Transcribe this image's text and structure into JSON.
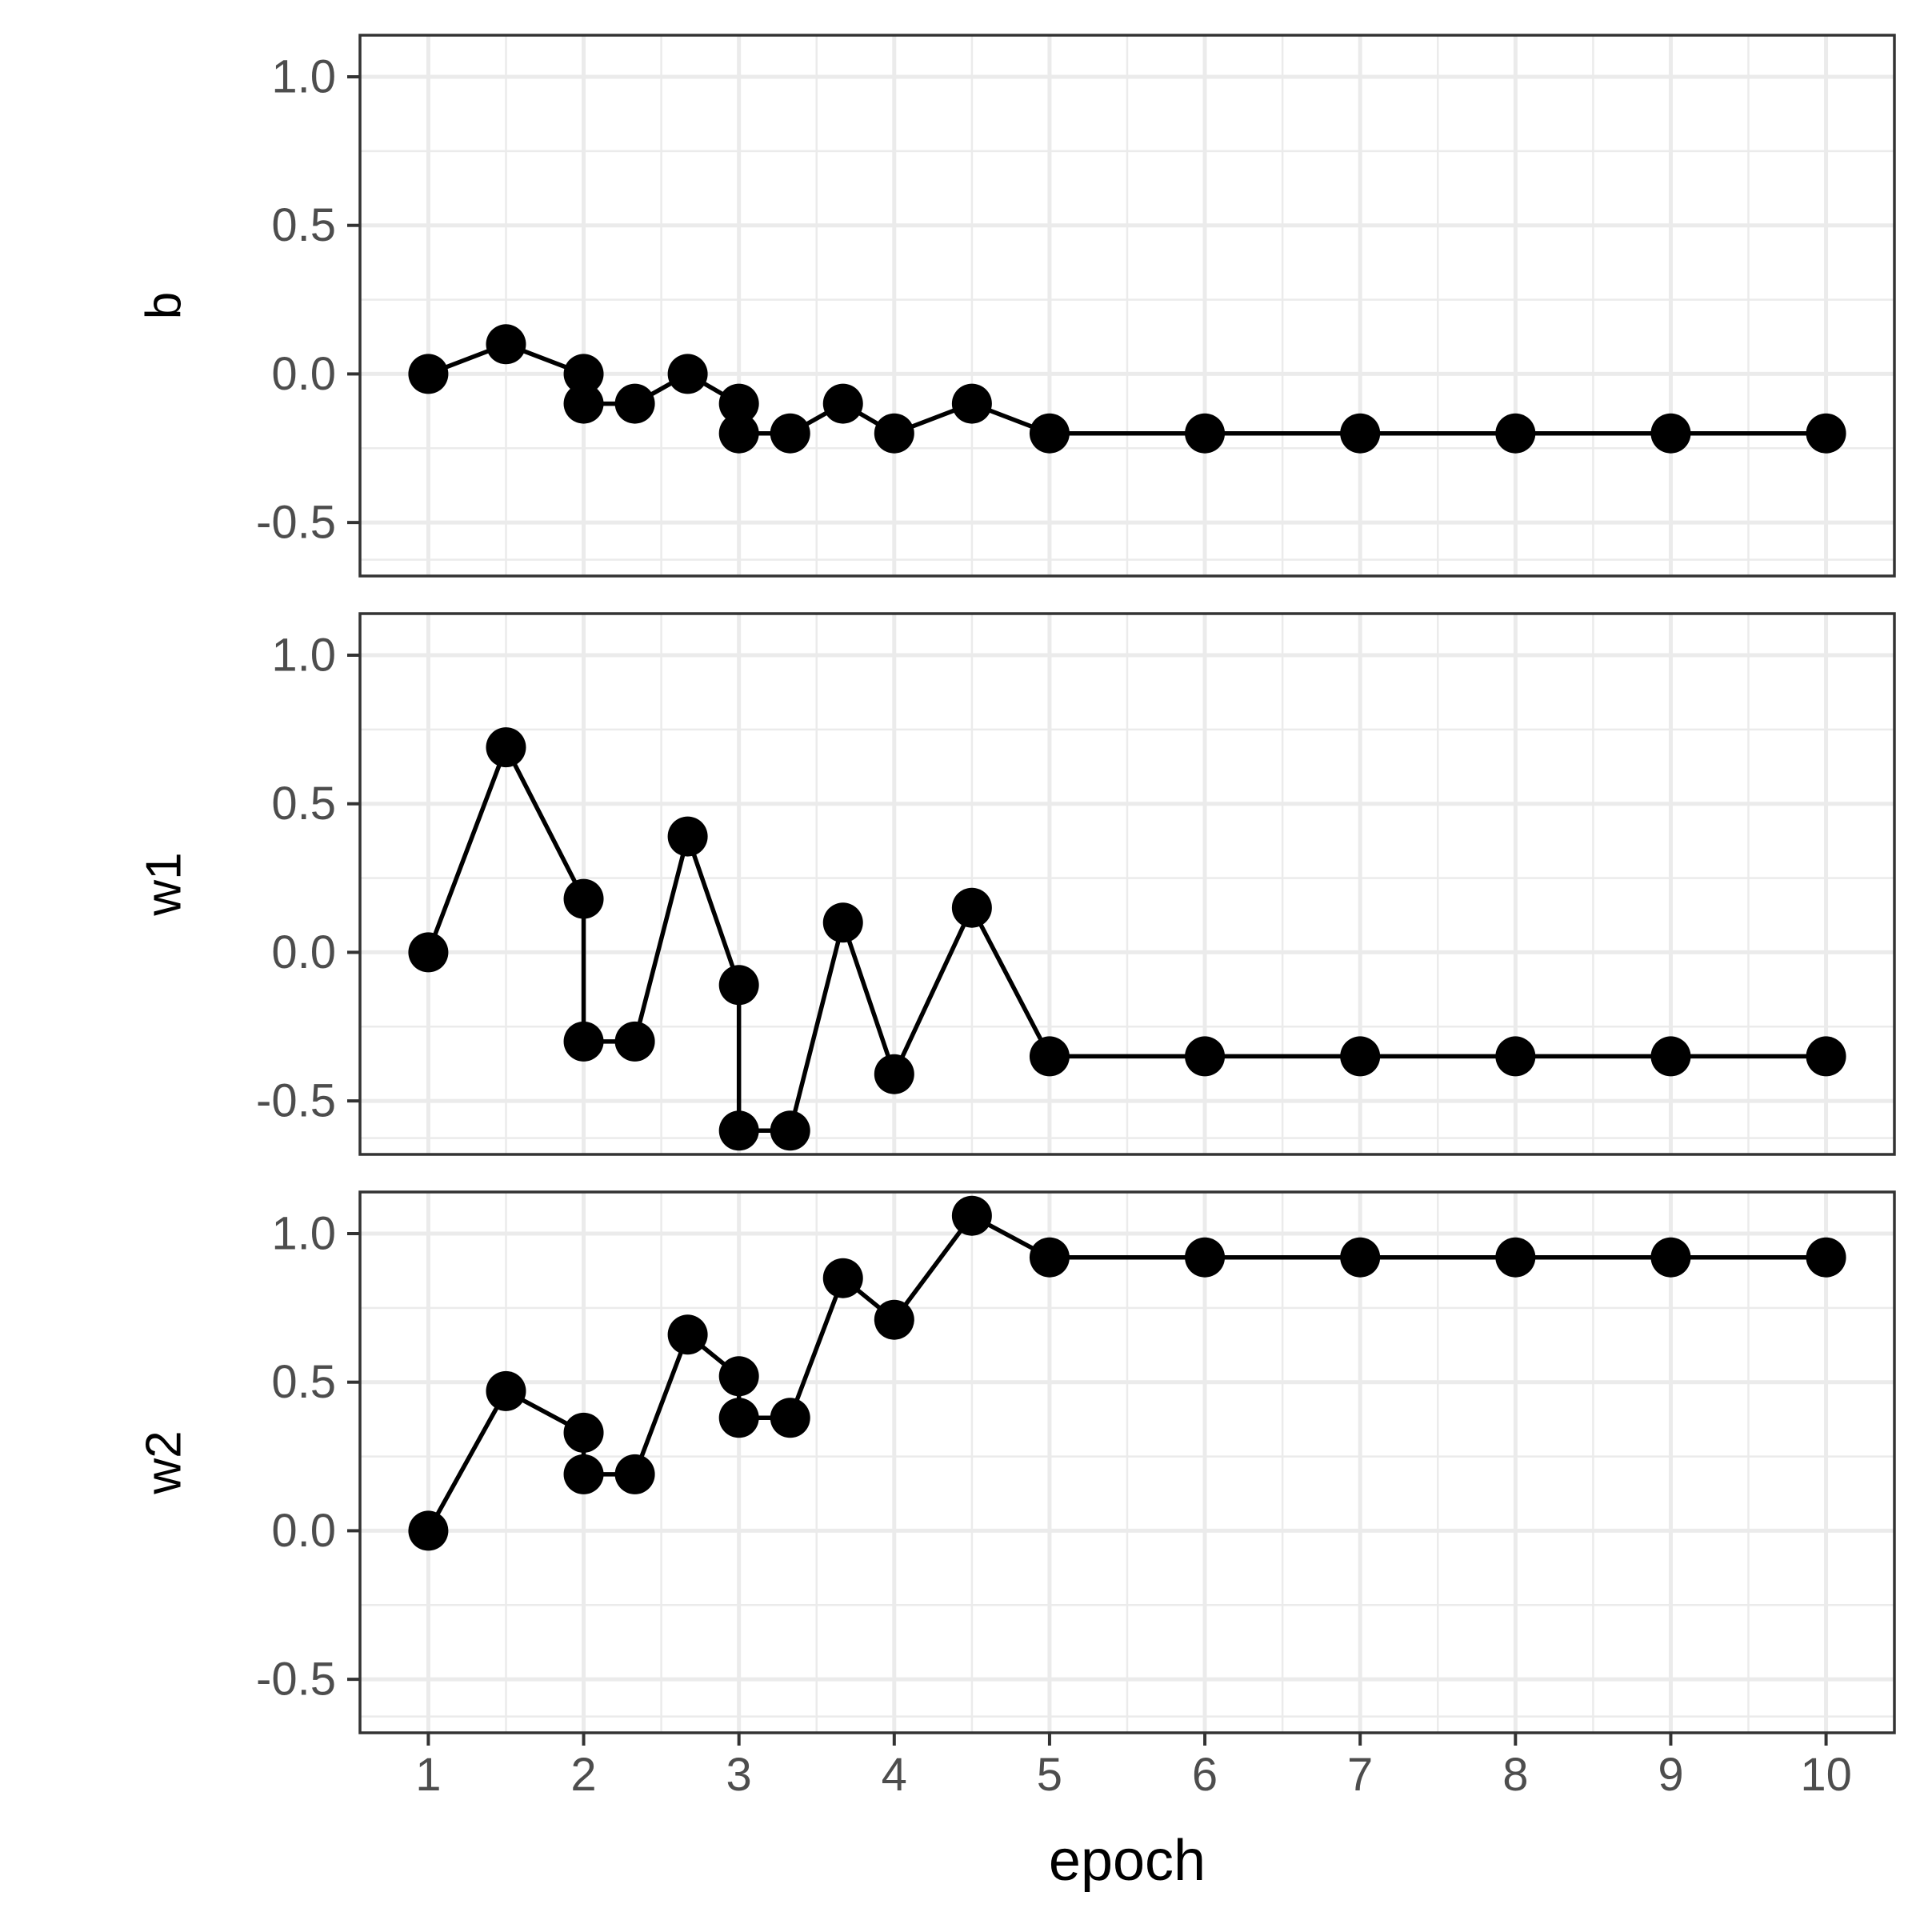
{
  "chart_data": {
    "type": "line",
    "xlabel": "epoch",
    "x_ticks": [
      1,
      2,
      3,
      4,
      5,
      6,
      7,
      8,
      9,
      10
    ],
    "xlim": [
      0.56,
      10.44
    ],
    "ylim": [
      -0.68,
      1.14
    ],
    "y_ticks": [
      1.0,
      0.5,
      0.0,
      -0.5
    ],
    "y_tick_labels": [
      "1.0",
      "0.5",
      "0.0",
      "-0.5"
    ],
    "grid": true,
    "colors": {
      "line": "#000000",
      "point": "#000000",
      "grid": "#ebebeb",
      "panel_border": "#333333"
    },
    "series": [
      {
        "name": "b",
        "x": [
          1,
          1.5,
          2,
          2,
          2.33,
          2.67,
          3,
          3,
          3.33,
          3.67,
          4,
          4.5,
          5,
          6,
          7,
          8,
          9,
          10
        ],
        "values": [
          0.0,
          0.1,
          0.0,
          -0.1,
          -0.1,
          0.0,
          -0.1,
          -0.2,
          -0.2,
          -0.1,
          -0.2,
          -0.1,
          -0.2,
          -0.2,
          -0.2,
          -0.2,
          -0.2,
          -0.2
        ]
      },
      {
        "name": "w1",
        "x": [
          1,
          1.5,
          2,
          2,
          2.33,
          2.67,
          3,
          3,
          3.33,
          3.67,
          4,
          4.5,
          5,
          6,
          7,
          8,
          9,
          10
        ],
        "values": [
          0.0,
          0.69,
          0.18,
          -0.3,
          -0.3,
          0.39,
          -0.11,
          -0.6,
          -0.6,
          0.1,
          -0.41,
          0.15,
          -0.35,
          -0.35,
          -0.35,
          -0.35,
          -0.35,
          -0.35
        ]
      },
      {
        "name": "w2",
        "x": [
          1,
          1.5,
          2,
          2,
          2.33,
          2.67,
          3,
          3,
          3.33,
          3.67,
          4,
          4.5,
          5,
          6,
          7,
          8,
          9,
          10
        ],
        "values": [
          0.0,
          0.47,
          0.33,
          0.19,
          0.19,
          0.66,
          0.52,
          0.38,
          0.38,
          0.85,
          0.71,
          1.06,
          0.92,
          0.92,
          0.92,
          0.92,
          0.92,
          0.92
        ]
      }
    ]
  }
}
